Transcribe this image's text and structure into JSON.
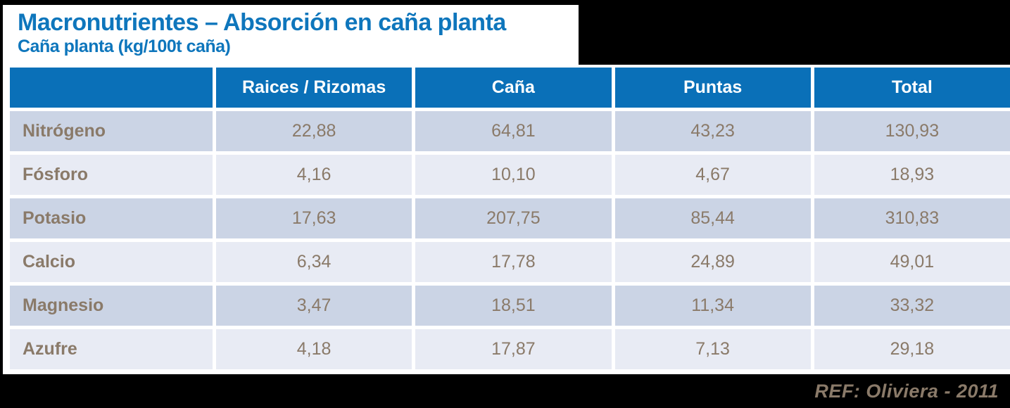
{
  "slide": {
    "title": "Macronutrientes – Absorción en caña planta",
    "subtitle": "Caña planta (kg/100t caña)",
    "footer_ref": "REF: Oliviera  - 2011"
  },
  "colors": {
    "title_text": "#0e76bc",
    "header_bg": "#0a70b8",
    "header_text": "#ffffff",
    "row_odd_bg": "#cbd4e5",
    "row_even_bg": "#e8ebf4",
    "cell_text": "#8a7a69",
    "canvas_black": "#000000",
    "panel_white": "#ffffff"
  },
  "chart_data": {
    "type": "table",
    "title": "Macronutrientes – Absorción en caña planta",
    "subtitle": "Caña planta (kg/100t caña)",
    "unit": "kg/100t caña",
    "columns": [
      "",
      "Raices / Rizomas",
      "Caña",
      "Puntas",
      "Total"
    ],
    "rows": [
      {
        "label": "Nitrógeno",
        "values": [
          "22,88",
          "64,81",
          "43,23",
          "130,93"
        ]
      },
      {
        "label": "Fósforo",
        "values": [
          "4,16",
          "10,10",
          "4,67",
          "18,93"
        ]
      },
      {
        "label": "Potasio",
        "values": [
          "17,63",
          "207,75",
          "85,44",
          "310,83"
        ]
      },
      {
        "label": "Calcio",
        "values": [
          "6,34",
          "17,78",
          "24,89",
          "49,01"
        ]
      },
      {
        "label": "Magnesio",
        "values": [
          "3,47",
          "18,51",
          "11,34",
          "33,32"
        ]
      },
      {
        "label": "Azufre",
        "values": [
          "4,18",
          "17,87",
          "7,13",
          "29,18"
        ]
      }
    ]
  }
}
